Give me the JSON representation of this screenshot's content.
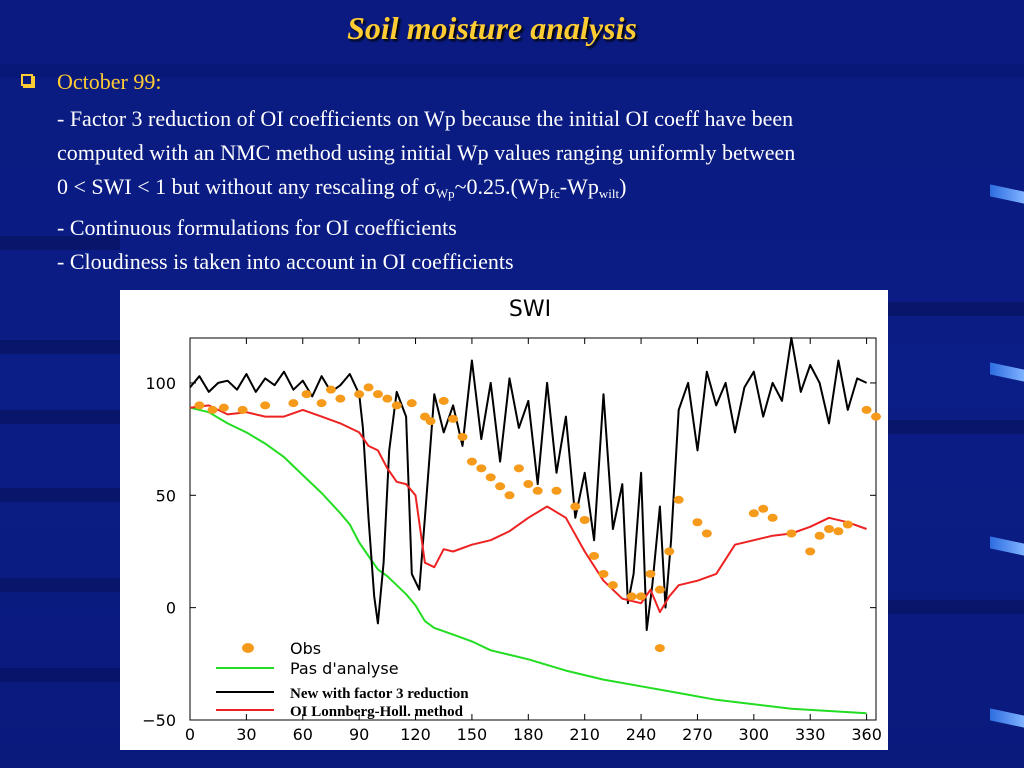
{
  "slide": {
    "title": "Soil moisture analysis",
    "heading": "October 99:",
    "line1": "- Factor 3 reduction of OI coefficients on Wp because the initial OI coeff have been",
    "line2": "computed with an NMC method using initial Wp values ranging uniformly between",
    "line3_a": "0 < SWI < 1 but without any rescaling of σ",
    "line3_sub1": "Wp",
    "line3_b": "~0.25.(Wp",
    "line3_sub2": "fc",
    "line3_c": "-Wp",
    "line3_sub3": "wilt",
    "line3_d": ")",
    "line4": "- Continuous formulations for OI coefficients",
    "line5": "- Cloudiness is taken into account in OI coefficients"
  },
  "colors": {
    "background": "#0b1d86",
    "title": "#ffcc33",
    "text": "#ffffff",
    "obs": "#f59a1a",
    "pas_analyse": "#22dd22",
    "new_factor3": "#000000",
    "oi_lonnberg": "#ee2222"
  },
  "chart_data": {
    "type": "line",
    "title": "SWI",
    "xlim": [
      0,
      365
    ],
    "ylim": [
      -50,
      120
    ],
    "xticks": [
      0,
      30,
      60,
      90,
      120,
      150,
      180,
      210,
      240,
      270,
      300,
      330,
      360
    ],
    "yticks": [
      100,
      50,
      0,
      -50
    ],
    "legend": [
      "Obs",
      "Pas d'analyse",
      "New with factor 3 reduction",
      "OI Lonnberg-Holl. method"
    ],
    "series": [
      {
        "name": "Pas d'analyse",
        "color": "#22dd22",
        "x": [
          0,
          10,
          20,
          30,
          40,
          50,
          60,
          70,
          80,
          85,
          90,
          95,
          100,
          105,
          110,
          115,
          120,
          125,
          130,
          140,
          150,
          160,
          180,
          200,
          220,
          240,
          260,
          280,
          300,
          320,
          340,
          360
        ],
        "y": [
          89,
          87,
          82,
          78,
          73,
          67,
          59,
          51,
          42,
          37,
          29,
          23,
          17,
          14,
          10,
          6,
          1,
          -6,
          -9,
          -12,
          -15,
          -19,
          -23,
          -28,
          -32,
          -35,
          -38,
          -41,
          -43,
          -45,
          -46,
          -47
        ]
      },
      {
        "name": "New with factor 3 reduction",
        "color": "#000000",
        "x": [
          0,
          5,
          10,
          15,
          20,
          25,
          30,
          35,
          40,
          45,
          50,
          55,
          60,
          65,
          70,
          75,
          80,
          85,
          90,
          92,
          95,
          98,
          100,
          103,
          106,
          110,
          115,
          118,
          122,
          125,
          130,
          135,
          140,
          145,
          150,
          155,
          160,
          165,
          170,
          175,
          180,
          185,
          190,
          195,
          200,
          205,
          210,
          215,
          220,
          225,
          230,
          233,
          236,
          240,
          243,
          246,
          250,
          253,
          256,
          260,
          265,
          270,
          275,
          280,
          285,
          290,
          295,
          300,
          305,
          310,
          315,
          320,
          325,
          330,
          335,
          340,
          345,
          350,
          355,
          360
        ],
        "y": [
          98,
          103,
          96,
          100,
          101,
          97,
          104,
          96,
          102,
          99,
          105,
          97,
          101,
          94,
          103,
          96,
          99,
          104,
          95,
          80,
          40,
          5,
          -7,
          20,
          70,
          96,
          85,
          15,
          8,
          40,
          95,
          78,
          90,
          72,
          110,
          75,
          100,
          65,
          102,
          80,
          92,
          55,
          100,
          60,
          85,
          40,
          60,
          30,
          95,
          35,
          55,
          2,
          15,
          60,
          -10,
          10,
          45,
          0,
          30,
          88,
          100,
          70,
          105,
          90,
          100,
          78,
          98,
          105,
          85,
          100,
          92,
          120,
          96,
          108,
          100,
          82,
          110,
          88,
          102,
          100
        ]
      },
      {
        "name": "OI Lonnberg-Holl. method",
        "color": "#ee2222",
        "x": [
          0,
          10,
          20,
          30,
          40,
          50,
          60,
          70,
          80,
          90,
          95,
          100,
          105,
          110,
          115,
          120,
          125,
          130,
          135,
          140,
          150,
          160,
          170,
          180,
          190,
          200,
          210,
          220,
          230,
          240,
          245,
          250,
          255,
          260,
          270,
          280,
          290,
          300,
          310,
          320,
          330,
          340,
          350,
          360
        ],
        "y": [
          89,
          90,
          86,
          87,
          85,
          85,
          88,
          85,
          82,
          78,
          72,
          70,
          62,
          56,
          55,
          50,
          20,
          18,
          26,
          25,
          28,
          30,
          34,
          40,
          45,
          40,
          25,
          12,
          4,
          2,
          8,
          -2,
          5,
          10,
          12,
          15,
          28,
          30,
          32,
          33,
          36,
          40,
          38,
          35
        ]
      }
    ],
    "obs": {
      "name": "Obs",
      "color": "#f59a1a",
      "x": [
        5,
        12,
        18,
        28,
        40,
        55,
        62,
        70,
        75,
        80,
        90,
        95,
        100,
        105,
        110,
        118,
        125,
        128,
        135,
        140,
        145,
        150,
        155,
        160,
        165,
        170,
        175,
        180,
        185,
        195,
        205,
        210,
        215,
        220,
        225,
        235,
        240,
        245,
        250,
        255,
        260,
        270,
        275,
        300,
        305,
        310,
        320,
        330,
        335,
        340,
        345,
        350,
        360,
        365,
        250
      ],
      "y": [
        90,
        88,
        89,
        88,
        90,
        91,
        95,
        91,
        97,
        93,
        95,
        98,
        95,
        93,
        90,
        91,
        85,
        83,
        92,
        84,
        76,
        65,
        62,
        58,
        54,
        50,
        62,
        55,
        52,
        52,
        45,
        39,
        23,
        15,
        10,
        5,
        5,
        15,
        8,
        25,
        48,
        38,
        33,
        42,
        44,
        40,
        33,
        25,
        32,
        35,
        34,
        37,
        88,
        85,
        -18
      ]
    }
  }
}
